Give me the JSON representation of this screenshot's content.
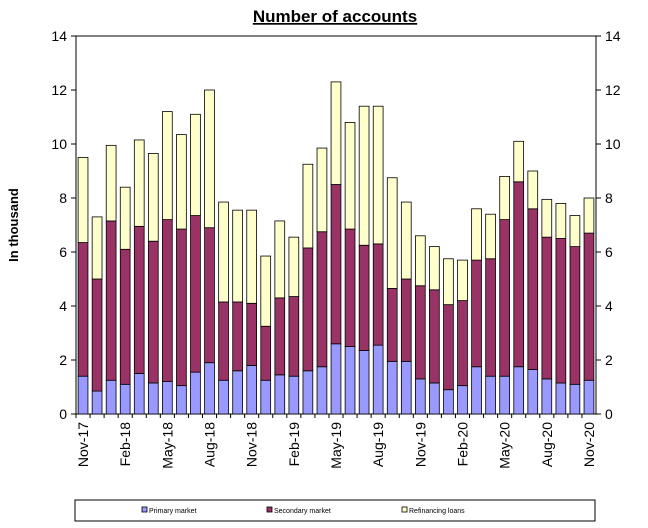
{
  "chart_data": {
    "type": "bar",
    "stacked": true,
    "title": "Number of accounts",
    "ylabel": "In thousand",
    "ylim": [
      0,
      14
    ],
    "yticks": [
      0,
      2,
      4,
      6,
      8,
      10,
      12,
      14
    ],
    "secondary_yaxis": true,
    "grid": false,
    "legend_position": "bottom",
    "categories": [
      "Nov-17",
      "Dec-17",
      "Jan-18",
      "Feb-18",
      "Mar-18",
      "Apr-18",
      "May-18",
      "Jun-18",
      "Jul-18",
      "Aug-18",
      "Sep-18",
      "Oct-18",
      "Nov-18",
      "Dec-18",
      "Jan-19",
      "Feb-19",
      "Mar-19",
      "Apr-19",
      "May-19",
      "Jun-19",
      "Jul-19",
      "Aug-19",
      "Sep-19",
      "Oct-19",
      "Nov-19",
      "Dec-19",
      "Jan-20",
      "Feb-20",
      "Mar-20",
      "Apr-20",
      "May-20",
      "Jun-20",
      "Jul-20",
      "Aug-20",
      "Sep-20",
      "Oct-20",
      "Nov-20"
    ],
    "tick_labels": [
      "Nov-17",
      "",
      "",
      "Feb-18",
      "",
      "",
      "May-18",
      "",
      "",
      "Aug-18",
      "",
      "",
      "Nov-18",
      "",
      "",
      "Feb-19",
      "",
      "",
      "May-19",
      "",
      "",
      "Aug-19",
      "",
      "",
      "Nov-19",
      "",
      "",
      "Feb-20",
      "",
      "",
      "May-20",
      "",
      "",
      "Aug-20",
      "",
      "",
      "Nov-20"
    ],
    "series": [
      {
        "name": "Primary market",
        "color": "#9999ff",
        "values": [
          1.4,
          0.85,
          1.25,
          1.1,
          1.5,
          1.15,
          1.2,
          1.05,
          1.55,
          1.9,
          1.25,
          1.6,
          1.8,
          1.25,
          1.45,
          1.4,
          1.6,
          1.75,
          2.6,
          2.5,
          2.35,
          2.55,
          1.95,
          1.95,
          1.3,
          1.15,
          0.9,
          1.05,
          1.75,
          1.4,
          1.4,
          1.75,
          1.65,
          1.3,
          1.15,
          1.1,
          1.25
        ]
      },
      {
        "name": "Secondary market",
        "color": "#993366",
        "values": [
          4.95,
          4.15,
          5.9,
          5.0,
          5.45,
          5.25,
          6.0,
          5.8,
          5.8,
          5.0,
          2.9,
          2.55,
          2.3,
          2.0,
          2.85,
          2.95,
          4.55,
          5.0,
          5.9,
          4.35,
          3.9,
          3.75,
          2.7,
          3.05,
          3.45,
          3.45,
          3.15,
          3.15,
          3.95,
          4.35,
          5.8,
          6.85,
          5.95,
          5.25,
          5.35,
          5.1,
          5.45
        ]
      },
      {
        "name": "Refinancing loans",
        "color": "#ffffcc",
        "values": [
          3.15,
          2.3,
          2.8,
          2.3,
          3.2,
          3.25,
          4.0,
          3.5,
          3.75,
          5.1,
          3.7,
          3.4,
          3.45,
          2.6,
          2.85,
          2.2,
          3.1,
          3.1,
          3.8,
          3.95,
          5.15,
          5.1,
          4.1,
          2.85,
          1.85,
          1.6,
          1.7,
          1.5,
          1.9,
          1.65,
          1.6,
          1.5,
          1.4,
          1.4,
          1.3,
          1.15,
          1.3
        ]
      }
    ]
  }
}
